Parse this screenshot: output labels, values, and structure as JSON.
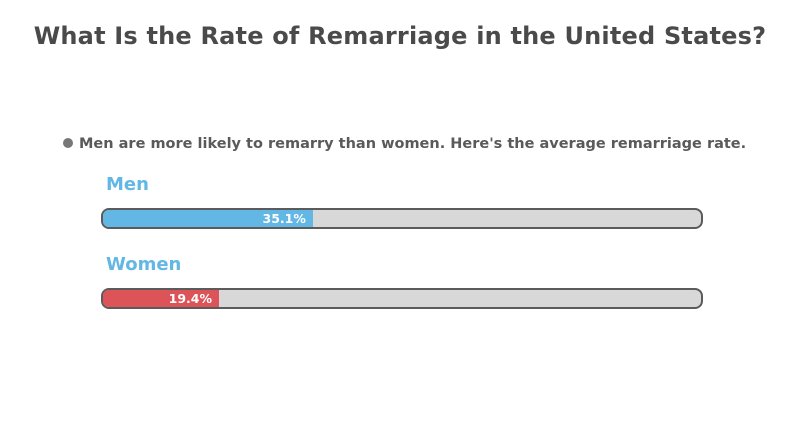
{
  "chart_data": {
    "type": "bar",
    "orientation": "horizontal",
    "title": "What Is the Rate of Remarriage in the United States?",
    "note": "Men are more likely to remarry than women. Here's the average remarriage rate.",
    "categories": [
      "Men",
      "Women"
    ],
    "values": [
      35.1,
      19.4
    ],
    "value_labels": [
      "35.1%",
      "19.4%"
    ],
    "unit": "%",
    "xlim": [
      0,
      100
    ],
    "colors": [
      "#63b7e4",
      "#dc5358"
    ],
    "track_color": "#d8d8d8"
  }
}
